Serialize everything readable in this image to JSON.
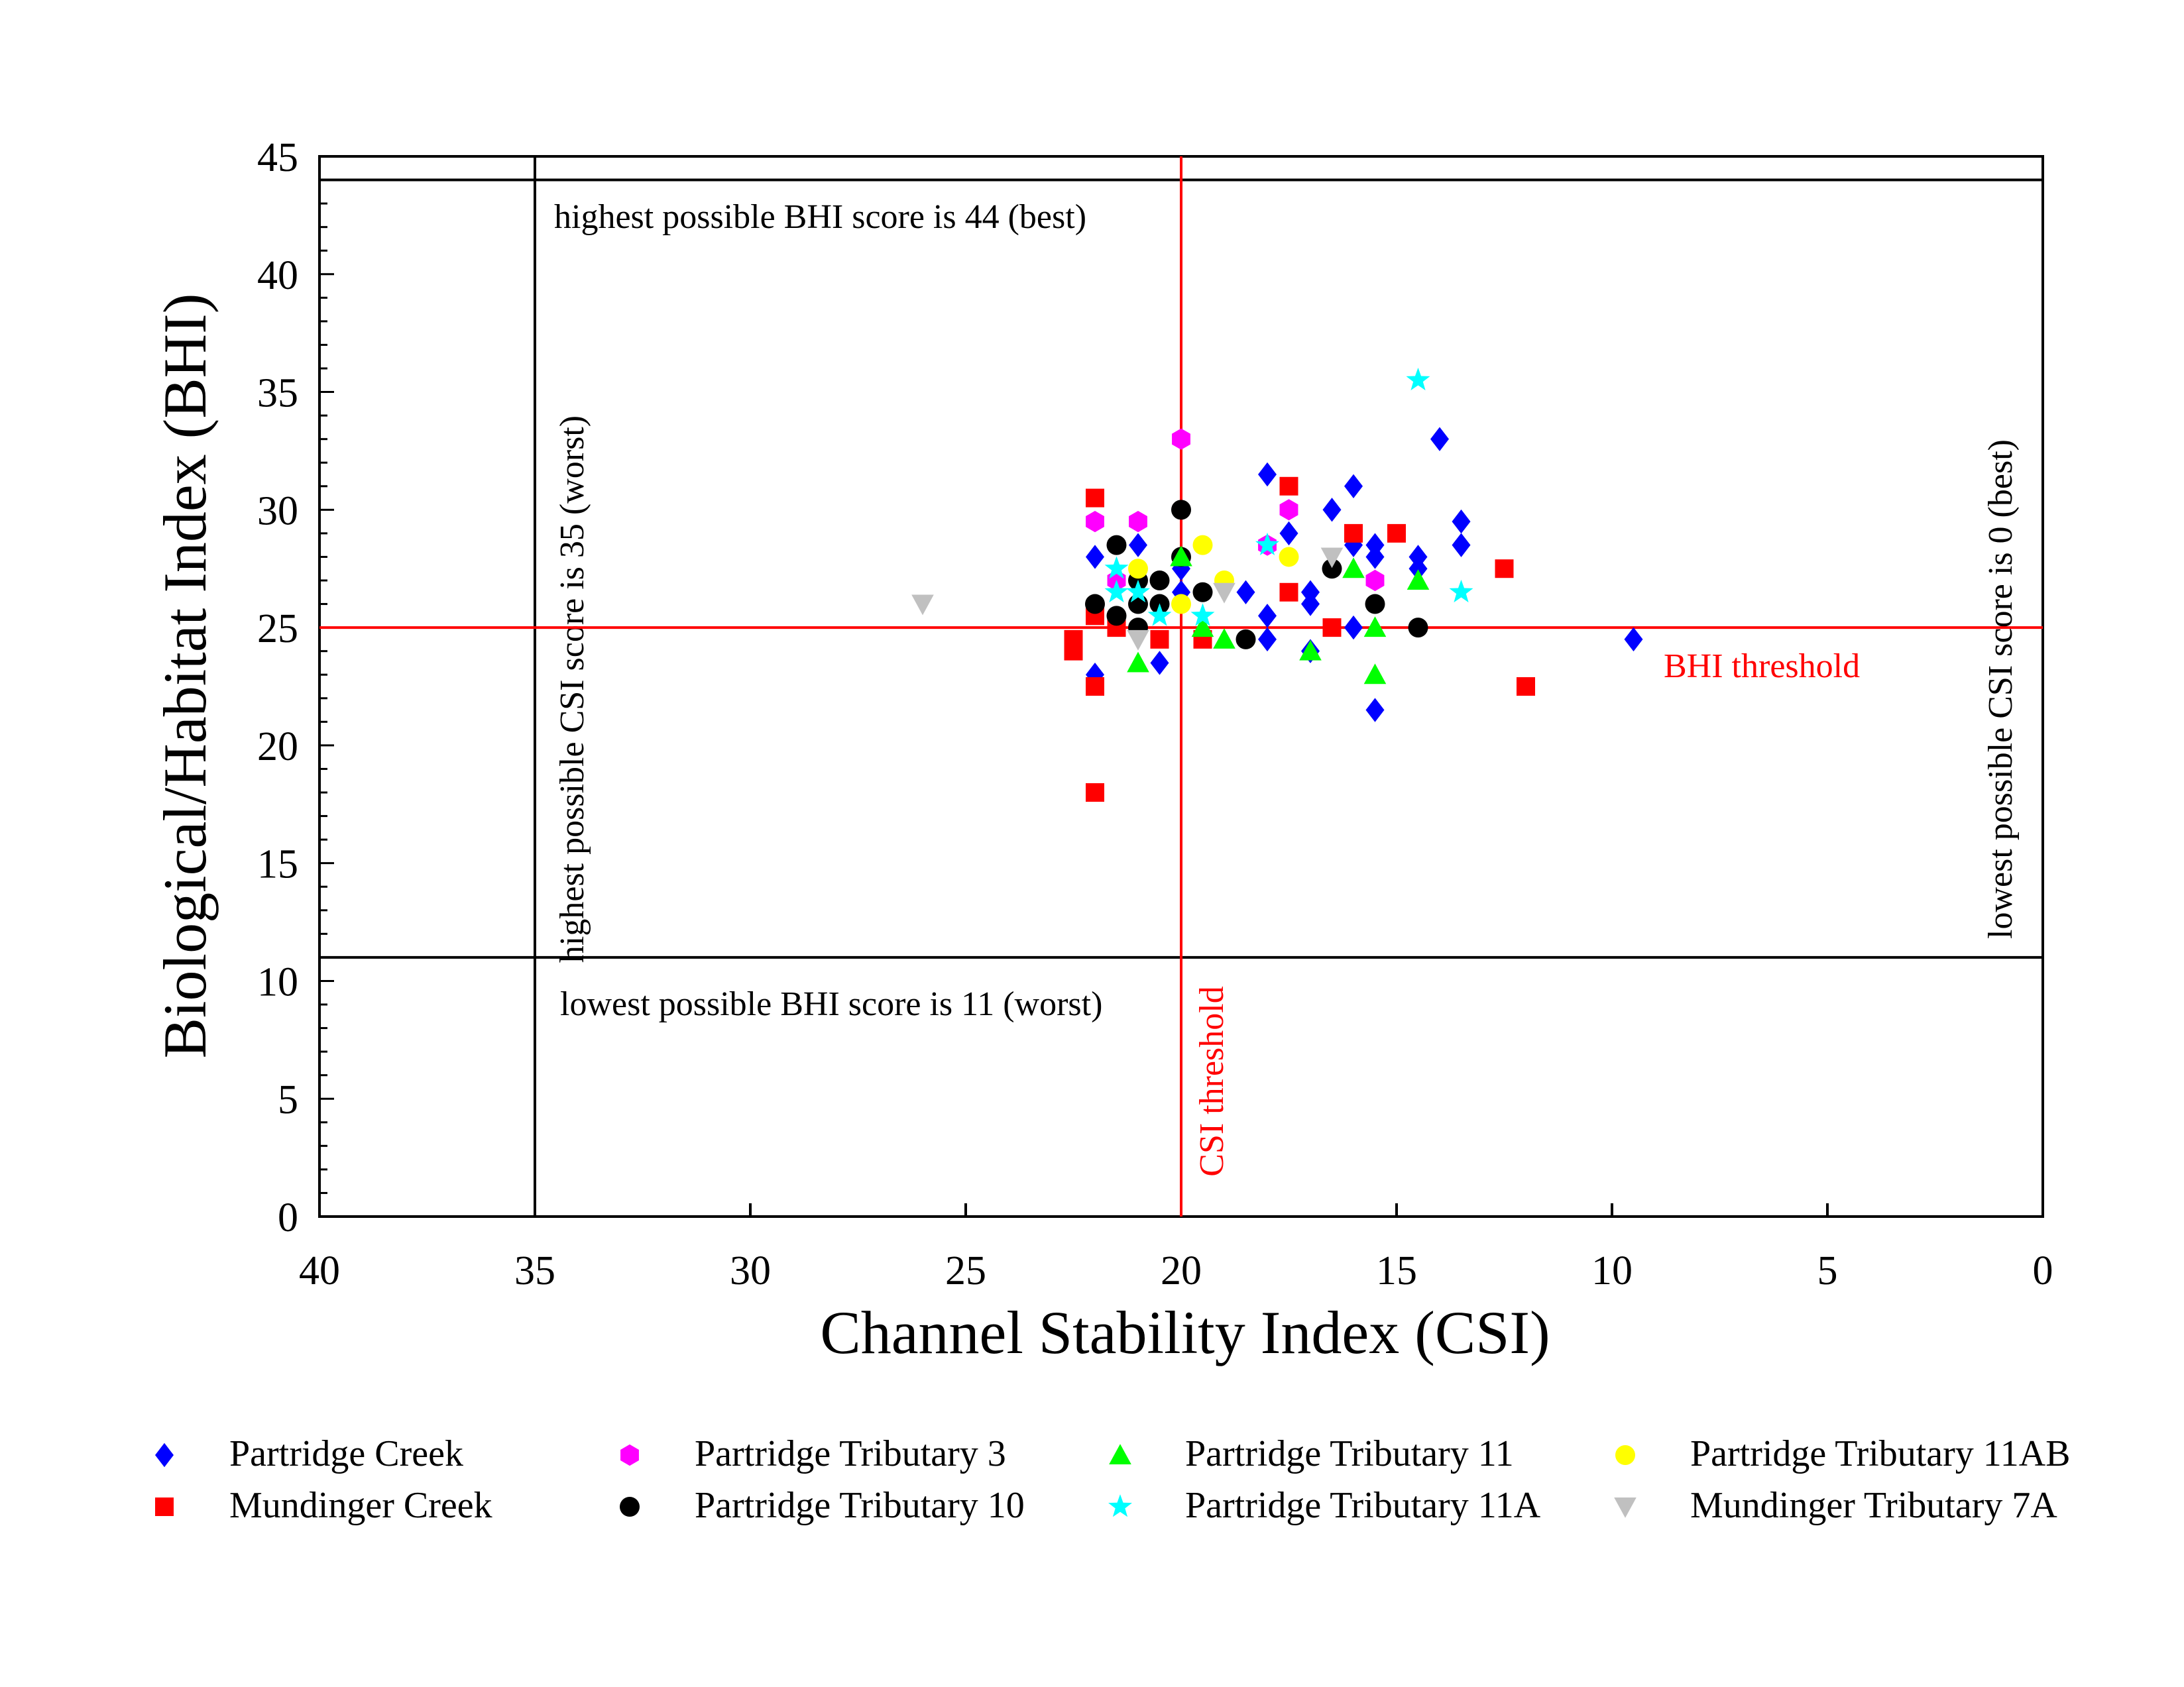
{
  "chart_data": {
    "type": "scatter",
    "xlabel": "Channel Stability Index (CSI)",
    "ylabel": "Biological/Habitat Index (BHI)",
    "xlim": [
      40,
      0
    ],
    "ylim": [
      0,
      45
    ],
    "x_reversed": true,
    "x_ticks": [
      40,
      35,
      30,
      25,
      20,
      15,
      10,
      5,
      0
    ],
    "y_ticks": [
      0,
      5,
      10,
      15,
      20,
      25,
      30,
      35,
      40,
      45
    ],
    "grid": false,
    "legend_position": "bottom",
    "reference_lines": [
      {
        "orientation": "horizontal",
        "value": 44,
        "color": "#000000",
        "label": "highest possible BHI score is 44 (best)"
      },
      {
        "orientation": "horizontal",
        "value": 11,
        "color": "#000000",
        "label": "lowest possible BHI score is 11 (worst)"
      },
      {
        "orientation": "vertical",
        "value": 35,
        "color": "#000000",
        "label": "highest possible CSI score is 35 (worst)"
      },
      {
        "orientation": "vertical",
        "value": 0,
        "color": "#000000",
        "label": "lowest possible CSI score is 0 (best)"
      },
      {
        "orientation": "horizontal",
        "value": 25,
        "color": "#ff0000",
        "label": "BHI threshold"
      },
      {
        "orientation": "vertical",
        "value": 20,
        "color": "#ff0000",
        "label": "CSI threshold"
      }
    ],
    "series": [
      {
        "name": "Partridge Creek",
        "marker": "diamond",
        "color": "#0000ff",
        "points": [
          [
            22,
            28
          ],
          [
            22,
            23
          ],
          [
            21,
            28.5
          ],
          [
            20.5,
            23.5
          ],
          [
            18,
            31.5
          ],
          [
            18,
            25.5
          ],
          [
            18,
            24.5
          ],
          [
            17.5,
            29
          ],
          [
            17,
            26.5
          ],
          [
            17,
            26
          ],
          [
            17,
            24
          ],
          [
            16.5,
            30
          ],
          [
            16,
            31
          ],
          [
            16,
            28.5
          ],
          [
            16,
            25
          ],
          [
            15.5,
            28.5
          ],
          [
            15.5,
            28
          ],
          [
            15.5,
            21.5
          ],
          [
            14.5,
            28
          ],
          [
            14.5,
            27.5
          ],
          [
            14,
            33
          ],
          [
            13.5,
            29.5
          ],
          [
            13.5,
            28.5
          ],
          [
            9.5,
            24.5
          ],
          [
            20,
            26.5
          ],
          [
            20,
            27.5
          ],
          [
            18.5,
            26.5
          ]
        ]
      },
      {
        "name": "Mundinger Creek",
        "marker": "square",
        "color": "#ff0000",
        "points": [
          [
            22.5,
            24.5
          ],
          [
            22.5,
            24
          ],
          [
            22,
            30.5
          ],
          [
            22,
            25.5
          ],
          [
            22,
            22.5
          ],
          [
            22,
            18
          ],
          [
            21.5,
            25
          ],
          [
            20.5,
            24.5
          ],
          [
            19.5,
            24.5
          ],
          [
            17.5,
            31
          ],
          [
            17.5,
            26.5
          ],
          [
            16.5,
            25
          ],
          [
            16,
            29
          ],
          [
            15,
            29
          ],
          [
            12.5,
            27.5
          ],
          [
            12,
            22.5
          ]
        ]
      },
      {
        "name": "Partridge Tributary 3",
        "marker": "hexagon",
        "color": "#ff00ff",
        "points": [
          [
            22,
            29.5
          ],
          [
            21.5,
            27
          ],
          [
            21,
            29.5
          ],
          [
            20,
            33
          ],
          [
            18,
            28.5
          ],
          [
            17.5,
            30
          ],
          [
            15.5,
            27
          ]
        ]
      },
      {
        "name": "Partridge Tributary 10",
        "marker": "circle",
        "color": "#000000",
        "points": [
          [
            22,
            26
          ],
          [
            21.5,
            28.5
          ],
          [
            21.5,
            25.5
          ],
          [
            21,
            27
          ],
          [
            21,
            26
          ],
          [
            21,
            25
          ],
          [
            20.5,
            27
          ],
          [
            20.5,
            26
          ],
          [
            20,
            30
          ],
          [
            20,
            28
          ],
          [
            19.5,
            26.5
          ],
          [
            18.5,
            24.5
          ],
          [
            16.5,
            27.5
          ],
          [
            15.5,
            26
          ],
          [
            14.5,
            25
          ]
        ]
      },
      {
        "name": "Partridge Tributary 11",
        "marker": "triangle-up",
        "color": "#00ff00",
        "points": [
          [
            21,
            23.5
          ],
          [
            20,
            28
          ],
          [
            19.5,
            25
          ],
          [
            19,
            24.5
          ],
          [
            17,
            24
          ],
          [
            16,
            27.5
          ],
          [
            15.5,
            25
          ],
          [
            15.5,
            23
          ],
          [
            14.5,
            27
          ]
        ]
      },
      {
        "name": "Partridge Tributary 11A",
        "marker": "star",
        "color": "#00ffff",
        "points": [
          [
            21.5,
            27.5
          ],
          [
            21.5,
            26.5
          ],
          [
            21,
            26.5
          ],
          [
            20.5,
            25.5
          ],
          [
            19.5,
            25.5
          ],
          [
            18,
            28.5
          ],
          [
            14.5,
            35.5
          ],
          [
            13.5,
            26.5
          ]
        ]
      },
      {
        "name": "Partridge Tributary 11AB",
        "marker": "circle",
        "color": "#ffff00",
        "points": [
          [
            21,
            27.5
          ],
          [
            20,
            26
          ],
          [
            19.5,
            28.5
          ],
          [
            19,
            27
          ],
          [
            17.5,
            28
          ]
        ]
      },
      {
        "name": "Mundinger Tributary 7A",
        "marker": "triangle-down",
        "color": "#c0c0c0",
        "points": [
          [
            26,
            26
          ],
          [
            21,
            24.5
          ],
          [
            19,
            26.5
          ],
          [
            16.5,
            28
          ]
        ]
      }
    ]
  }
}
